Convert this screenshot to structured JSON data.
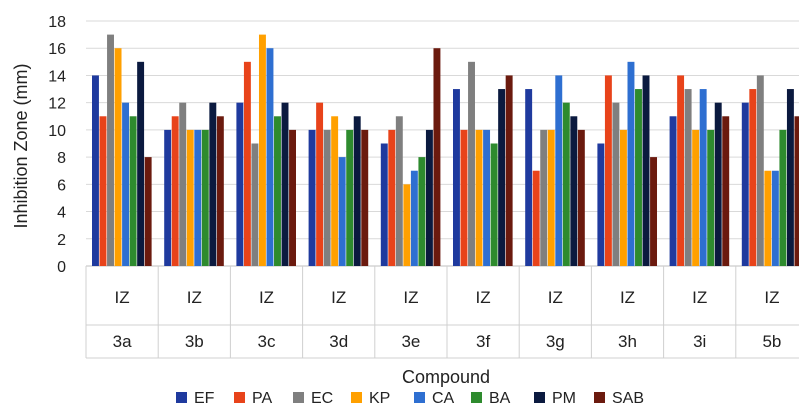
{
  "chart_data": {
    "type": "bar",
    "title": "",
    "xlabel": "Compound",
    "ylabel": "Inhibition Zone (mm)",
    "ylim": [
      0,
      18
    ],
    "yticks": [
      0,
      2,
      4,
      6,
      8,
      10,
      12,
      14,
      16,
      18
    ],
    "grid": "horizontal",
    "legend_position": "bottom",
    "categories": [
      "3a",
      "3b",
      "3c",
      "3d",
      "3e",
      "3f",
      "3g",
      "3h",
      "3i",
      "5b"
    ],
    "sub_label": "IZ",
    "series": [
      {
        "name": "EF",
        "color": "#1f3a9e",
        "values": [
          14,
          10,
          12,
          10,
          9,
          13,
          13,
          9,
          11,
          12
        ]
      },
      {
        "name": "PA",
        "color": "#e8431a",
        "values": [
          11,
          11,
          15,
          12,
          10,
          10,
          7,
          14,
          14,
          13
        ]
      },
      {
        "name": "EC",
        "color": "#7f7f7f",
        "values": [
          17,
          12,
          9,
          10,
          11,
          15,
          10,
          12,
          13,
          14
        ]
      },
      {
        "name": "KP",
        "color": "#ffa000",
        "values": [
          16,
          10,
          17,
          11,
          6,
          10,
          10,
          10,
          10,
          7
        ]
      },
      {
        "name": "CA",
        "color": "#2e6fd1",
        "values": [
          12,
          10,
          16,
          8,
          7,
          10,
          14,
          15,
          13,
          7
        ]
      },
      {
        "name": "BA",
        "color": "#2e8b2e",
        "values": [
          11,
          10,
          11,
          10,
          8,
          9,
          12,
          13,
          10,
          10
        ]
      },
      {
        "name": "PM",
        "color": "#0b1a3f",
        "values": [
          15,
          12,
          12,
          11,
          10,
          13,
          11,
          14,
          12,
          13
        ]
      },
      {
        "name": "SAB",
        "color": "#6b1a0e",
        "values": [
          8,
          11,
          10,
          10,
          16,
          14,
          10,
          8,
          11,
          11
        ]
      }
    ]
  }
}
